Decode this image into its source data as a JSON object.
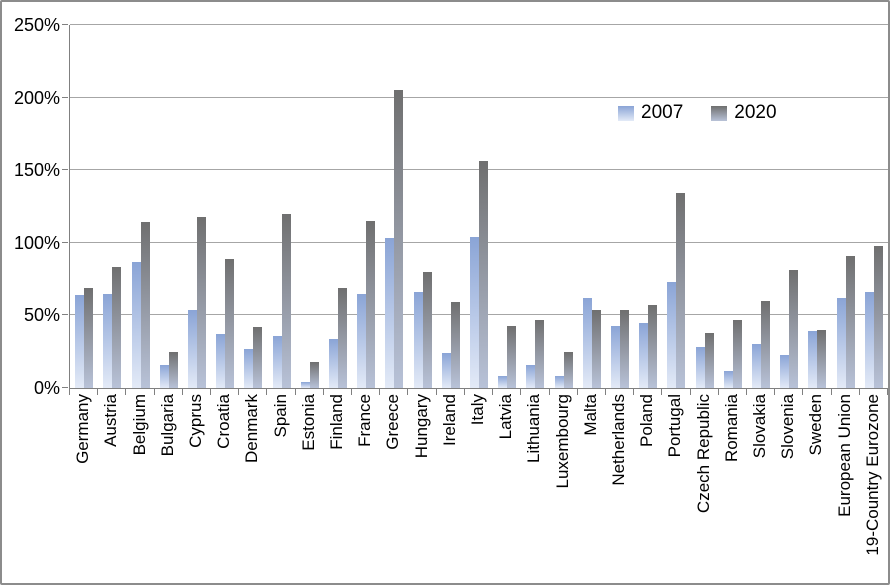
{
  "chart_data": {
    "type": "bar",
    "title": "",
    "xlabel": "",
    "ylabel": "",
    "ylim": [
      0,
      250
    ],
    "ytick_step": 50,
    "yticks": [
      "0%",
      "50%",
      "100%",
      "150%",
      "200%",
      "250%"
    ],
    "grid": true,
    "legend_position": "top-right-inside",
    "categories": [
      "Germany",
      "Austria",
      "Belgium",
      "Bulgaria",
      "Cyprus",
      "Croatia",
      "Denmark",
      "Spain",
      "Estonia",
      "Finland",
      "France",
      "Greece",
      "Hungary",
      "Ireland",
      "Italy",
      "Latvia",
      "Lithuania",
      "Luxembourg",
      "Malta",
      "Netherlands",
      "Poland",
      "Portugal",
      "Czech Republic",
      "Romania",
      "Slovakia",
      "Slovenia",
      "Sweden",
      "European Union",
      "19-Country Eurozone"
    ],
    "series": [
      {
        "name": "2007",
        "color_top": "#8aa4d6",
        "color_bottom": "#e3eaf7",
        "values": [
          64,
          65,
          87,
          16,
          54,
          37,
          27,
          36,
          4,
          34,
          65,
          103,
          66,
          24,
          104,
          8,
          16,
          8,
          62,
          43,
          45,
          73,
          28,
          12,
          30,
          23,
          39,
          62,
          66
        ]
      },
      {
        "name": "2020",
        "color_top": "#6f6f6f",
        "color_bottom": "#b8c2d8",
        "values": [
          69,
          83,
          114,
          25,
          118,
          89,
          42,
          120,
          18,
          69,
          115,
          205,
          80,
          59,
          156,
          43,
          47,
          25,
          54,
          54,
          57,
          134,
          38,
          47,
          60,
          81,
          40,
          91,
          98
        ]
      }
    ],
    "axis_color": "#808080",
    "gridline_color": "#a6a6a6",
    "text_color": "#000000"
  }
}
